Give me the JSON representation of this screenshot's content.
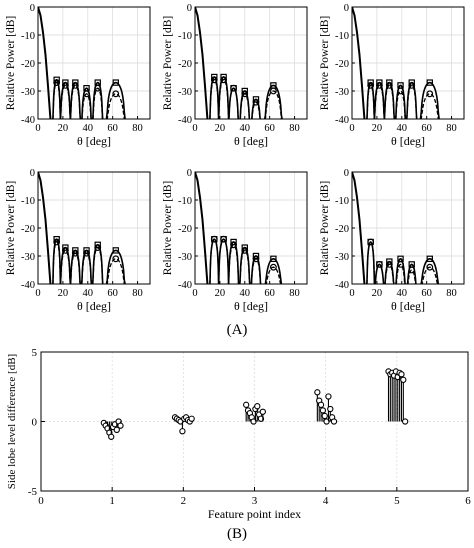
{
  "figure": {
    "caption_a": "(A)",
    "caption_b": "(B)"
  },
  "colors": {
    "ink": "#000000",
    "grid": "#d9d9d9",
    "background": "#ffffff"
  },
  "chart_data": [
    {
      "type": "line",
      "panel": "A1",
      "xlabel": "θ [deg]",
      "ylabel": "Relative Power [dB]",
      "xlim": [
        0,
        90
      ],
      "ylim": [
        -40,
        0
      ],
      "xticks": [
        "0",
        "20",
        "40",
        "60",
        "80"
      ],
      "yticks": [
        "0",
        "-10",
        "-20",
        "-30",
        "-40"
      ],
      "grid": true,
      "mainlobe": {
        "x": [
          0,
          2,
          4,
          6,
          8,
          10
        ],
        "y": [
          0,
          -3,
          -9,
          -17,
          -28,
          -40
        ]
      },
      "lobes": [
        {
          "start": 12,
          "end": 18,
          "solid_peak": -26,
          "dashed_peak": -27
        },
        {
          "start": 18,
          "end": 26,
          "solid_peak": -27,
          "dashed_peak": -28
        },
        {
          "start": 26,
          "end": 34,
          "solid_peak": -27,
          "dashed_peak": -28
        },
        {
          "start": 35,
          "end": 43,
          "solid_peak": -29,
          "dashed_peak": -31
        },
        {
          "start": 44,
          "end": 52,
          "solid_peak": -27,
          "dashed_peak": -29
        },
        {
          "start": 55,
          "end": 70,
          "solid_peak": -27,
          "dashed_peak": -31
        }
      ]
    },
    {
      "type": "line",
      "panel": "A2",
      "xlabel": "θ [deg]",
      "ylabel": "Relative Power [dB]",
      "xlim": [
        0,
        90
      ],
      "ylim": [
        -40,
        0
      ],
      "xticks": [
        "0",
        "20",
        "40",
        "60",
        "80"
      ],
      "yticks": [
        "0",
        "-10",
        "-20",
        "-30",
        "-40"
      ],
      "grid": true,
      "mainlobe": {
        "x": [
          0,
          2,
          4,
          6,
          8,
          10
        ],
        "y": [
          0,
          -3,
          -9,
          -17,
          -28,
          -40
        ]
      },
      "lobes": [
        {
          "start": 12,
          "end": 19,
          "solid_peak": -25,
          "dashed_peak": -26
        },
        {
          "start": 19,
          "end": 27,
          "solid_peak": -25,
          "dashed_peak": -26
        },
        {
          "start": 27,
          "end": 35,
          "solid_peak": -29,
          "dashed_peak": -29
        },
        {
          "start": 36,
          "end": 44,
          "solid_peak": -30,
          "dashed_peak": -31
        },
        {
          "start": 45,
          "end": 53,
          "solid_peak": -33,
          "dashed_peak": -34
        },
        {
          "start": 56,
          "end": 70,
          "solid_peak": -28,
          "dashed_peak": -30
        }
      ]
    },
    {
      "type": "line",
      "panel": "A3",
      "xlabel": "θ [deg]",
      "ylabel": "Relative Power [dB]",
      "xlim": [
        0,
        90
      ],
      "ylim": [
        -40,
        0
      ],
      "xticks": [
        "0",
        "20",
        "40",
        "60",
        "80"
      ],
      "yticks": [
        "0",
        "-10",
        "-20",
        "-30",
        "-40"
      ],
      "grid": true,
      "mainlobe": {
        "x": [
          0,
          2,
          4,
          6,
          8,
          10
        ],
        "y": [
          0,
          -3,
          -9,
          -17,
          -28,
          -40
        ]
      },
      "lobes": [
        {
          "start": 12,
          "end": 18,
          "solid_peak": -27,
          "dashed_peak": -28
        },
        {
          "start": 18,
          "end": 26,
          "solid_peak": -27,
          "dashed_peak": -28
        },
        {
          "start": 26,
          "end": 34,
          "solid_peak": -27,
          "dashed_peak": -28
        },
        {
          "start": 35,
          "end": 43,
          "solid_peak": -28,
          "dashed_peak": -30
        },
        {
          "start": 44,
          "end": 52,
          "solid_peak": -27,
          "dashed_peak": -28
        },
        {
          "start": 55,
          "end": 70,
          "solid_peak": -27,
          "dashed_peak": -31
        }
      ]
    },
    {
      "type": "line",
      "panel": "A4",
      "xlabel": "θ [deg]",
      "ylabel": "Relative Power [dB]",
      "xlim": [
        0,
        90
      ],
      "ylim": [
        -40,
        0
      ],
      "xticks": [
        "0",
        "20",
        "40",
        "60",
        "80"
      ],
      "yticks": [
        "0",
        "-10",
        "-20",
        "-30",
        "-40"
      ],
      "grid": true,
      "mainlobe": {
        "x": [
          0,
          2,
          4,
          6,
          8,
          10
        ],
        "y": [
          0,
          -3,
          -9,
          -17,
          -28,
          -40
        ]
      },
      "lobes": [
        {
          "start": 12,
          "end": 18,
          "solid_peak": -24,
          "dashed_peak": -25
        },
        {
          "start": 18,
          "end": 26,
          "solid_peak": -27,
          "dashed_peak": -28
        },
        {
          "start": 26,
          "end": 34,
          "solid_peak": -28,
          "dashed_peak": -29
        },
        {
          "start": 35,
          "end": 43,
          "solid_peak": -28,
          "dashed_peak": -29
        },
        {
          "start": 44,
          "end": 52,
          "solid_peak": -26,
          "dashed_peak": -27
        },
        {
          "start": 55,
          "end": 70,
          "solid_peak": -28,
          "dashed_peak": -31
        }
      ]
    },
    {
      "type": "line",
      "panel": "A5",
      "xlabel": "θ [deg]",
      "ylabel": "Relative Power [dB]",
      "xlim": [
        0,
        90
      ],
      "ylim": [
        -40,
        0
      ],
      "xticks": [
        "0",
        "20",
        "40",
        "60",
        "80"
      ],
      "yticks": [
        "0",
        "-10",
        "-20",
        "-30",
        "-40"
      ],
      "grid": true,
      "mainlobe": {
        "x": [
          0,
          2,
          4,
          6,
          8,
          10
        ],
        "y": [
          0,
          -3,
          -9,
          -17,
          -28,
          -40
        ]
      },
      "lobes": [
        {
          "start": 12,
          "end": 19,
          "solid_peak": -24,
          "dashed_peak": -24
        },
        {
          "start": 19,
          "end": 27,
          "solid_peak": -24,
          "dashed_peak": -24
        },
        {
          "start": 27,
          "end": 35,
          "solid_peak": -25,
          "dashed_peak": -26
        },
        {
          "start": 36,
          "end": 44,
          "solid_peak": -27,
          "dashed_peak": -28
        },
        {
          "start": 45,
          "end": 53,
          "solid_peak": -30,
          "dashed_peak": -31
        },
        {
          "start": 56,
          "end": 70,
          "solid_peak": -31,
          "dashed_peak": -34
        }
      ]
    },
    {
      "type": "line",
      "panel": "A6",
      "xlabel": "θ [deg]",
      "ylabel": "Relative Power [dB]",
      "xlim": [
        0,
        90
      ],
      "ylim": [
        -40,
        0
      ],
      "xticks": [
        "0",
        "20",
        "40",
        "60",
        "80"
      ],
      "yticks": [
        "0",
        "-10",
        "-20",
        "-30",
        "-40"
      ],
      "grid": true,
      "mainlobe": {
        "x": [
          0,
          2,
          4,
          6,
          8,
          10
        ],
        "y": [
          0,
          -3,
          -9,
          -17,
          -28,
          -40
        ]
      },
      "lobes": [
        {
          "start": 12,
          "end": 18,
          "solid_peak": -25,
          "dashed_peak": -25
        },
        {
          "start": 18,
          "end": 26,
          "solid_peak": -33,
          "dashed_peak": -33
        },
        {
          "start": 26,
          "end": 34,
          "solid_peak": -32,
          "dashed_peak": -33
        },
        {
          "start": 35,
          "end": 43,
          "solid_peak": -31,
          "dashed_peak": -33
        },
        {
          "start": 44,
          "end": 52,
          "solid_peak": -33,
          "dashed_peak": -35
        },
        {
          "start": 55,
          "end": 70,
          "solid_peak": -31,
          "dashed_peak": -34
        }
      ]
    },
    {
      "type": "scatter",
      "panel": "B",
      "xlabel": "Feature point index",
      "ylabel": "Side lobe level difference [dB]",
      "xlim": [
        0,
        6
      ],
      "ylim": [
        -5,
        5
      ],
      "xticks": [
        "0",
        "1",
        "2",
        "3",
        "4",
        "5",
        "6"
      ],
      "yticks": [
        "5",
        "0",
        "-5"
      ],
      "grid": true,
      "stems": [
        {
          "index": 1,
          "values": [
            -0.1,
            -0.3,
            -0.5,
            -0.8,
            -1.1,
            -0.4,
            -0.2,
            -0.6,
            0.0,
            -0.3
          ]
        },
        {
          "index": 2,
          "values": [
            0.3,
            0.2,
            0.1,
            0.0,
            -0.7,
            0.2,
            0.3,
            0.1,
            0.0,
            0.2
          ]
        },
        {
          "index": 3,
          "values": [
            1.2,
            0.8,
            0.6,
            0.3,
            0.0,
            0.9,
            1.1,
            0.5,
            0.2,
            0.7
          ]
        },
        {
          "index": 4,
          "values": [
            2.1,
            1.5,
            1.2,
            0.8,
            0.4,
            0.0,
            1.8,
            0.9,
            0.3,
            0.0
          ]
        },
        {
          "index": 5,
          "values": [
            3.6,
            3.4,
            3.5,
            3.3,
            3.6,
            3.2,
            3.5,
            3.4,
            3.0,
            0.0
          ]
        }
      ]
    }
  ]
}
